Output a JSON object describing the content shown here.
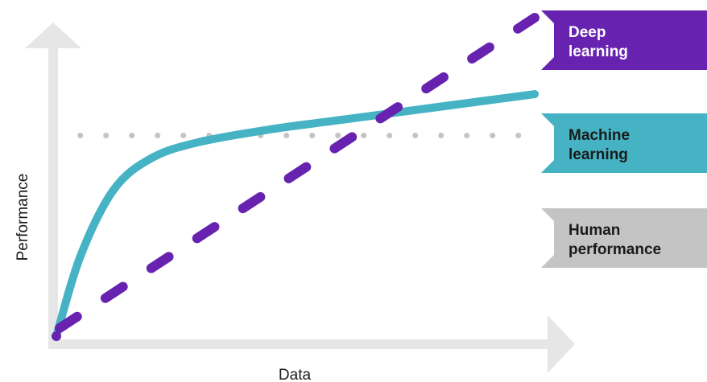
{
  "chart_data": {
    "type": "line",
    "xlabel": "Data",
    "ylabel": "Performance",
    "series": [
      {
        "name": "Deep learning",
        "style": "dashed",
        "color": "#6723b0",
        "label_color": "#ffffff",
        "x": [
          0,
          1
        ],
        "y": [
          0,
          1
        ]
      },
      {
        "name": "Machine learning",
        "style": "solid",
        "color": "#45b3c4",
        "label_color": "#1a1a1a",
        "x": [
          0,
          0.05,
          0.12,
          0.2,
          0.3,
          0.45,
          0.6,
          0.8,
          1
        ],
        "y": [
          0,
          0.25,
          0.46,
          0.56,
          0.61,
          0.65,
          0.68,
          0.72,
          0.76
        ]
      },
      {
        "name": "Human performance",
        "style": "dotted",
        "color": "#c4c4c4",
        "label_color": "#1a1a1a",
        "x": [
          0,
          1
        ],
        "y": [
          0.63,
          0.63
        ]
      }
    ],
    "axis_color": "#e6e6e6",
    "grid": false,
    "legend": "right, as tags at the end of each series"
  }
}
